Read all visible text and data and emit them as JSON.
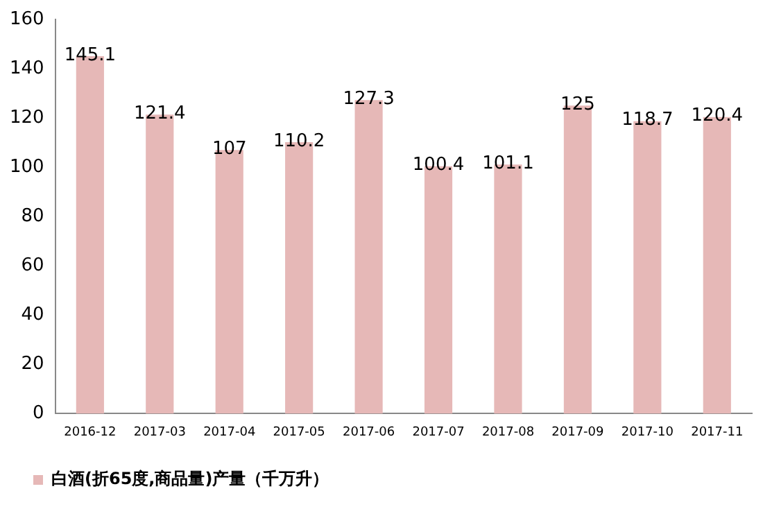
{
  "chart_data": {
    "type": "bar",
    "categories": [
      "2016-12",
      "2017-03",
      "2017-04",
      "2017-05",
      "2017-06",
      "2017-07",
      "2017-08",
      "2017-09",
      "2017-10",
      "2017-11"
    ],
    "series": [
      {
        "name": "白酒(折65度,商品量)产量（千万升）",
        "color": "#e6b8b7",
        "values": [
          145.1,
          121.4,
          107,
          110.2,
          127.3,
          100.4,
          101.1,
          125,
          118.7,
          120.4
        ]
      }
    ],
    "ylim": [
      0,
      160
    ],
    "yticks": [
      0,
      20,
      40,
      60,
      80,
      100,
      120,
      140,
      160
    ],
    "data_labels": true,
    "legend": "bottom"
  }
}
